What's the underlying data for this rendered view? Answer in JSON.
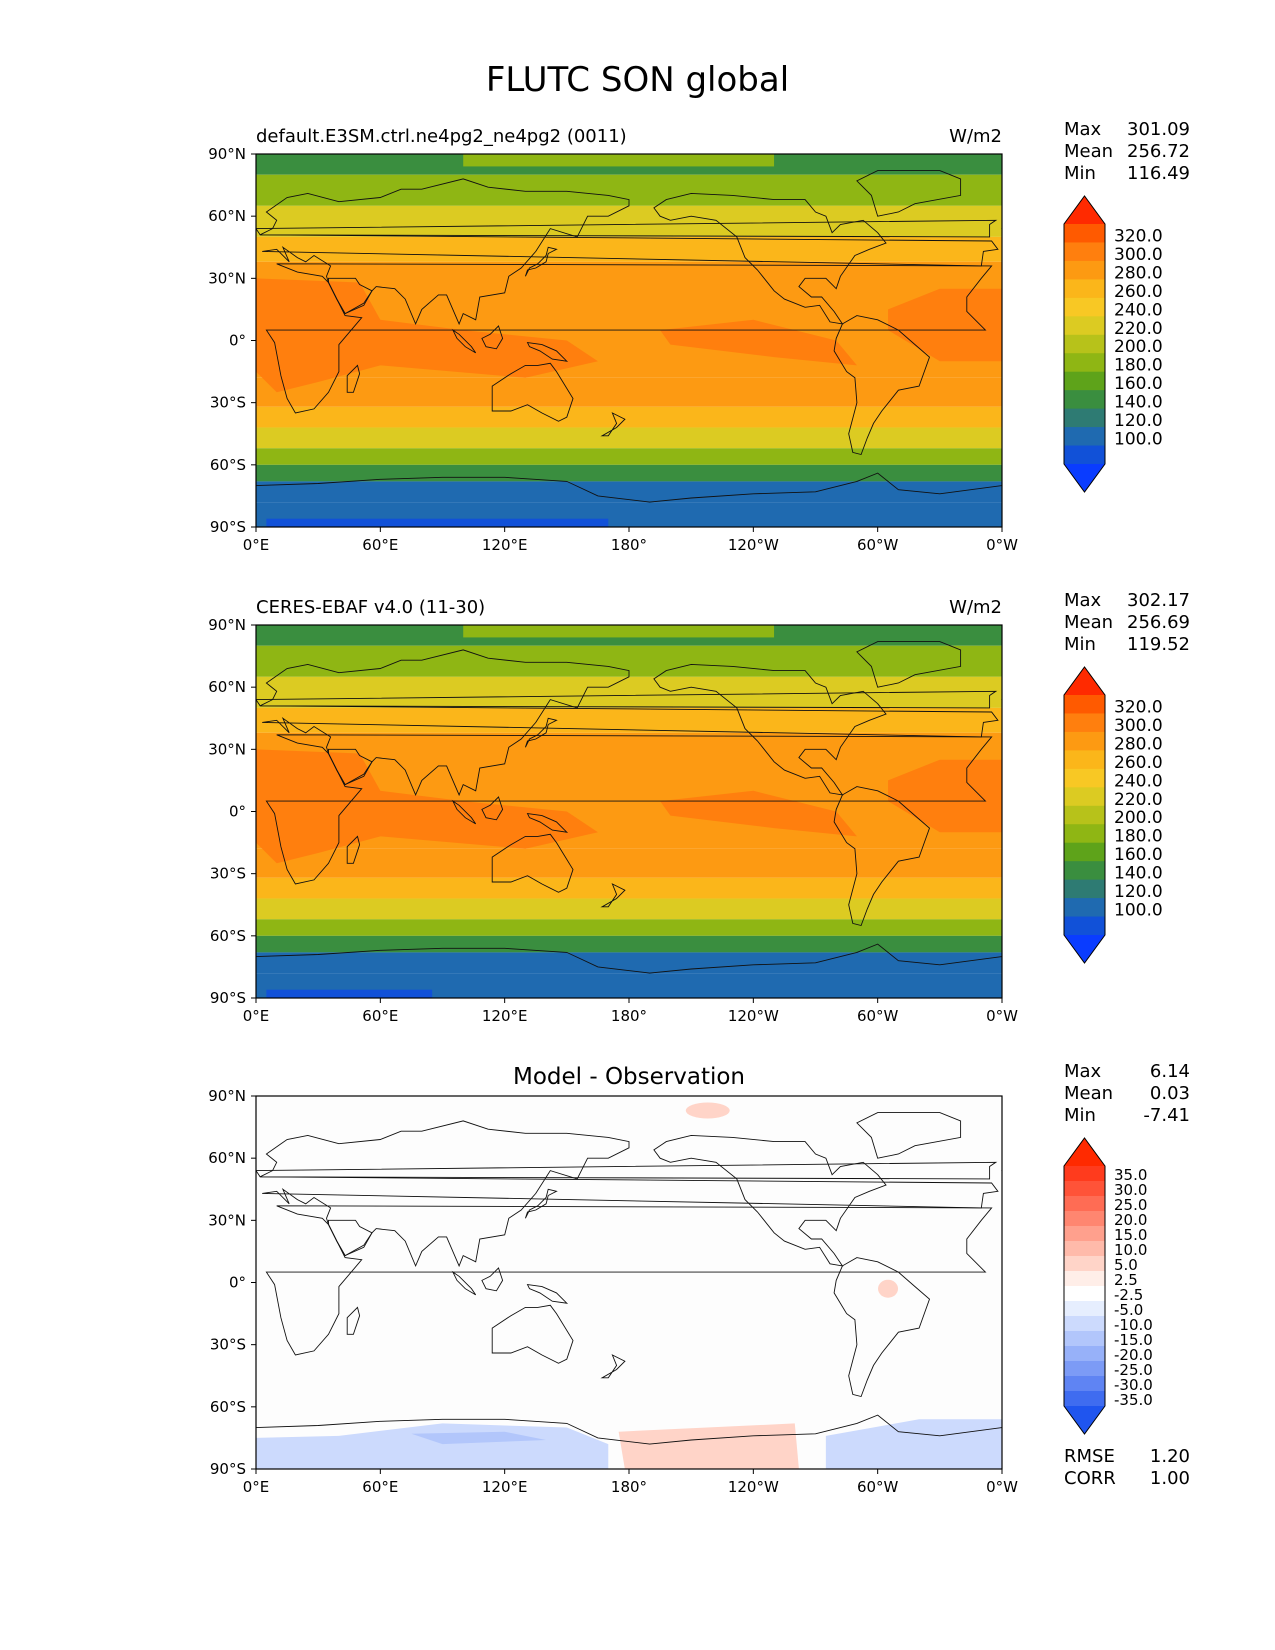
{
  "figure": {
    "title": "FLUTC SON global"
  },
  "axes_labels": {
    "lat": [
      "90°N",
      "60°N",
      "30°N",
      "0°",
      "30°S",
      "60°S",
      "90°S"
    ],
    "lon": [
      "0°E",
      "60°E",
      "120°E",
      "180°",
      "120°W",
      "60°W",
      "0°W"
    ]
  },
  "stat_labels": {
    "max": "Max",
    "mean": "Mean",
    "min": "Min",
    "rmse": "RMSE",
    "corr": "CORR"
  },
  "panels": [
    {
      "id": "model",
      "title_left": "default.E3SM.ctrl.ne4pg2_ne4pg2 (0011)",
      "title_right": "W/m2",
      "title_center": "",
      "stats": {
        "max": "301.09",
        "mean": "256.72",
        "min": "116.49"
      },
      "colorbar_levels": [
        "320.0",
        "300.0",
        "280.0",
        "260.0",
        "240.0",
        "220.0",
        "200.0",
        "180.0",
        "160.0",
        "140.0",
        "120.0",
        "100.0"
      ],
      "colorbar_colors": [
        "#ff2a00",
        "#ff5a00",
        "#ff7f0e",
        "#fd9a12",
        "#fbb61a",
        "#f8c824",
        "#dccb22",
        "#b7c21a",
        "#8fb614",
        "#5ea31a",
        "#3a8e3f",
        "#2e7b73",
        "#1f6ab0",
        "#1151d8",
        "#0a3cff"
      ]
    },
    {
      "id": "obs",
      "title_left": "CERES-EBAF v4.0 (11-30)",
      "title_right": "W/m2",
      "title_center": "",
      "stats": {
        "max": "302.17",
        "mean": "256.69",
        "min": "119.52"
      },
      "colorbar_levels": [
        "320.0",
        "300.0",
        "280.0",
        "260.0",
        "240.0",
        "220.0",
        "200.0",
        "180.0",
        "160.0",
        "140.0",
        "120.0",
        "100.0"
      ],
      "colorbar_colors": [
        "#ff2a00",
        "#ff5a00",
        "#ff7f0e",
        "#fd9a12",
        "#fbb61a",
        "#f8c824",
        "#dccb22",
        "#b7c21a",
        "#8fb614",
        "#5ea31a",
        "#3a8e3f",
        "#2e7b73",
        "#1f6ab0",
        "#1151d8",
        "#0a3cff"
      ]
    },
    {
      "id": "diff",
      "title_left": "",
      "title_right": "",
      "title_center": "Model - Observation",
      "stats": {
        "max": "6.14",
        "mean": "0.03",
        "min": "-7.41"
      },
      "rmse": "1.20",
      "corr": "1.00",
      "colorbar_levels": [
        "35.0",
        "30.0",
        "25.0",
        "20.0",
        "15.0",
        "10.0",
        "5.0",
        "2.5",
        "-2.5",
        "-5.0",
        "-10.0",
        "-15.0",
        "-20.0",
        "-25.0",
        "-30.0",
        "-35.0"
      ],
      "colorbar_colors": [
        "#ff2a00",
        "#ff3b1d",
        "#ff5338",
        "#ff6c54",
        "#ff8670",
        "#ffa08d",
        "#ffbaaa",
        "#ffd4c8",
        "#ffeee8",
        "#ffffff",
        "#e6eefe",
        "#ccdafd",
        "#b2c6fb",
        "#97b1f9",
        "#7c9bf6",
        "#5f84f3",
        "#3f6cf0",
        "#1f55ef"
      ]
    }
  ],
  "legend": {
    "colors": {
      "warm_bands": [
        "#ff2a00",
        "#ff7f0e",
        "#fd9a12",
        "#fbb61a",
        "#dccb22",
        "#8fb614",
        "#3a8e3f",
        "#1f6ab0"
      ],
      "diff_pos": "#ffd4c8",
      "diff_neg": "#ccdafd"
    }
  }
}
